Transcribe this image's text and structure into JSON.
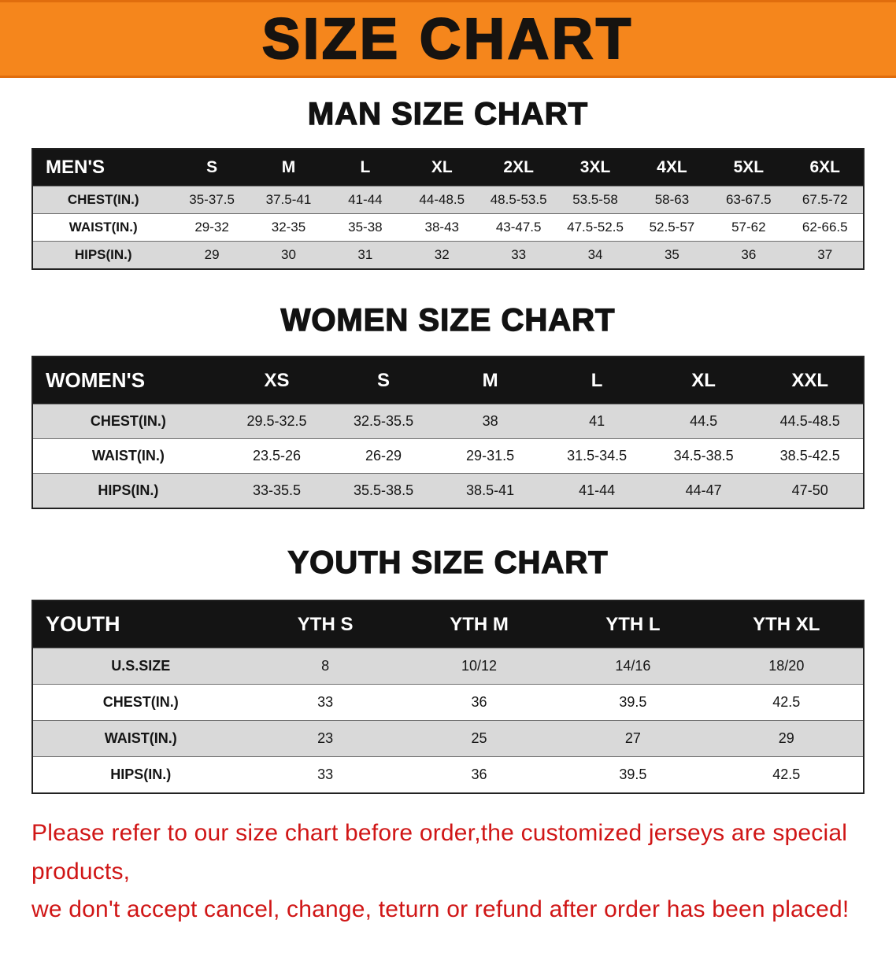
{
  "banner": {
    "title": "SIZE CHART",
    "bg_color": "#f5861c"
  },
  "sections": {
    "men": {
      "heading": "MAN SIZE CHART",
      "columns": [
        "MEN'S",
        "S",
        "M",
        "L",
        "XL",
        "2XL",
        "3XL",
        "4XL",
        "5XL",
        "6XL"
      ],
      "rows": [
        [
          "CHEST(IN.)",
          "35-37.5",
          "37.5-41",
          "41-44",
          "44-48.5",
          "48.5-53.5",
          "53.5-58",
          "58-63",
          "63-67.5",
          "67.5-72"
        ],
        [
          "WAIST(IN.)",
          "29-32",
          "32-35",
          "35-38",
          "38-43",
          "43-47.5",
          "47.5-52.5",
          "52.5-57",
          "57-62",
          "62-66.5"
        ],
        [
          "HIPS(IN.)",
          "29",
          "30",
          "31",
          "32",
          "33",
          "34",
          "35",
          "36",
          "37"
        ]
      ]
    },
    "women": {
      "heading": "WOMEN SIZE CHART",
      "columns": [
        "WOMEN'S",
        "XS",
        "S",
        "M",
        "L",
        "XL",
        "XXL"
      ],
      "rows": [
        [
          "CHEST(IN.)",
          "29.5-32.5",
          "32.5-35.5",
          "38",
          "41",
          "44.5",
          "44.5-48.5"
        ],
        [
          "WAIST(IN.)",
          "23.5-26",
          "26-29",
          "29-31.5",
          "31.5-34.5",
          "34.5-38.5",
          "38.5-42.5"
        ],
        [
          "HIPS(IN.)",
          "33-35.5",
          "35.5-38.5",
          "38.5-41",
          "41-44",
          "44-47",
          "47-50"
        ]
      ]
    },
    "youth": {
      "heading": "YOUTH SIZE CHART",
      "columns": [
        "YOUTH",
        "YTH S",
        "YTH M",
        "YTH L",
        "YTH XL"
      ],
      "rows": [
        [
          "U.S.SIZE",
          "8",
          "10/12",
          "14/16",
          "18/20"
        ],
        [
          "CHEST(IN.)",
          "33",
          "36",
          "39.5",
          "42.5"
        ],
        [
          "WAIST(IN.)",
          "23",
          "25",
          "27",
          "29"
        ],
        [
          "HIPS(IN.)",
          "33",
          "36",
          "39.5",
          "42.5"
        ]
      ]
    }
  },
  "notice": {
    "line1": "Please refer to our size chart before order,the customized jerseys are special products,",
    "line2": "we don't accept cancel, change, teturn or refund after order has been placed!",
    "color": "#d01616"
  },
  "colors": {
    "banner_bg": "#f5861c",
    "table_header_bg": "#141414",
    "table_header_text": "#ffffff",
    "row_alt_bg": "#d9d9d9",
    "notice_text": "#d01616"
  }
}
